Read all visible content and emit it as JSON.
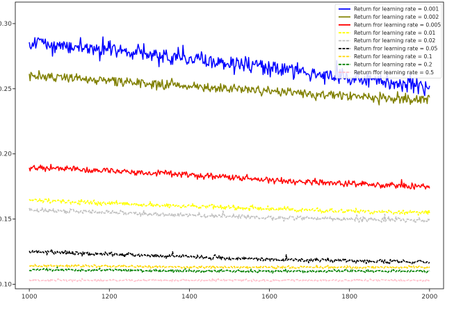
{
  "chart_data": {
    "type": "line",
    "title": "",
    "xlabel": "",
    "ylabel": "",
    "xlim": [
      965,
      2035
    ],
    "ylim": [
      0.0965,
      0.3165
    ],
    "x_ticks": [
      1000,
      1200,
      1400,
      1600,
      1800,
      2000
    ],
    "x_tick_labels": [
      "1000",
      "1200",
      "1400",
      "1600",
      "1800",
      "2000"
    ],
    "y_ticks": [
      0.1,
      0.15,
      0.2,
      0.25,
      0.3
    ],
    "y_tick_labels": [
      "0.10",
      "0.15",
      "0.20",
      "0.25",
      "0.30"
    ],
    "grid": false,
    "legend_position": "top-right",
    "series": [
      {
        "name": "Return for learning rate = 0.001",
        "color": "#0000ff",
        "dash": "solid",
        "x": [
          1000,
          1200,
          1400,
          1600,
          1800,
          2000
        ],
        "values": [
          0.285,
          0.28,
          0.273,
          0.266,
          0.258,
          0.252
        ],
        "noise": 0.0045
      },
      {
        "name": "Return for learning rate = 0.002",
        "color": "#808000",
        "dash": "solid",
        "x": [
          1000,
          1200,
          1400,
          1600,
          1800,
          2000
        ],
        "values": [
          0.26,
          0.256,
          0.252,
          0.248,
          0.244,
          0.241
        ],
        "noise": 0.0028
      },
      {
        "name": "Return fror learning rate = 0.005",
        "color": "#ff0000",
        "dash": "solid",
        "x": [
          1000,
          1200,
          1400,
          1600,
          1800,
          2000
        ],
        "values": [
          0.19,
          0.187,
          0.184,
          0.18,
          0.177,
          0.175
        ],
        "noise": 0.0018
      },
      {
        "name": "Return for learning rate = 0.01",
        "color": "#ffff00",
        "dash": "dashed",
        "x": [
          1000,
          1200,
          1400,
          1600,
          1800,
          2000
        ],
        "values": [
          0.165,
          0.162,
          0.16,
          0.158,
          0.156,
          0.155
        ],
        "noise": 0.0013
      },
      {
        "name": "Return for learning rate = 0.02",
        "color": "#c0c0c0",
        "dash": "dashed",
        "x": [
          1000,
          1200,
          1400,
          1600,
          1800,
          2000
        ],
        "values": [
          0.157,
          0.155,
          0.153,
          0.151,
          0.15,
          0.149
        ],
        "noise": 0.0013
      },
      {
        "name": "Return fror learning rate = 0.05",
        "color": "#000000",
        "dash": "dashed",
        "x": [
          1000,
          1200,
          1400,
          1600,
          1800,
          2000
        ],
        "values": [
          0.125,
          0.123,
          0.121,
          0.119,
          0.118,
          0.117
        ],
        "noise": 0.0011
      },
      {
        "name": "Return for learning rate = 0.1",
        "color": "#ffd700",
        "dash": "dashed",
        "x": [
          1000,
          1200,
          1400,
          1600,
          1800,
          2000
        ],
        "values": [
          0.114,
          0.114,
          0.113,
          0.113,
          0.113,
          0.113
        ],
        "noise": 0.0007
      },
      {
        "name": "Return for learning rate = 0.2",
        "color": "#008000",
        "dash": "dashed",
        "x": [
          1000,
          1200,
          1400,
          1600,
          1800,
          2000
        ],
        "values": [
          0.111,
          0.111,
          0.11,
          0.11,
          0.11,
          0.11
        ],
        "noise": 0.0007
      },
      {
        "name": "Return ffor learning rate = 0.5",
        "color": "#ffc0cb",
        "dash": "dashed",
        "x": [
          1000,
          1200,
          1400,
          1600,
          1800,
          2000
        ],
        "values": [
          0.103,
          0.103,
          0.103,
          0.103,
          0.103,
          0.103
        ],
        "noise": 0.0006
      }
    ]
  }
}
